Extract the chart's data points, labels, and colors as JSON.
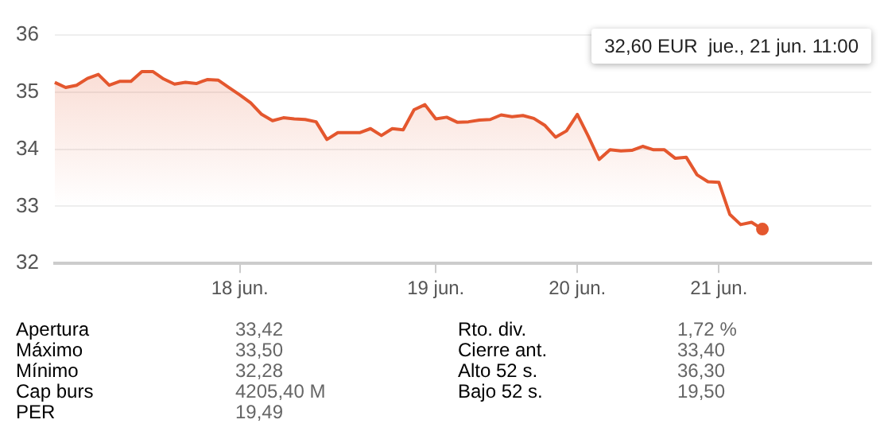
{
  "chart_data": {
    "type": "area",
    "categories": [
      null,
      null,
      null,
      null,
      null,
      null,
      null,
      null,
      null,
      null,
      null,
      null,
      null,
      null,
      null,
      null,
      null,
      "18 jun.",
      null,
      null,
      null,
      null,
      null,
      null,
      null,
      null,
      null,
      null,
      null,
      null,
      null,
      null,
      null,
      null,
      null,
      "19 jun.",
      null,
      null,
      null,
      null,
      null,
      null,
      null,
      null,
      null,
      null,
      null,
      null,
      "20 jun.",
      null,
      null,
      null,
      null,
      null,
      null,
      null,
      null,
      null,
      null,
      null,
      null,
      "21 jun.",
      null,
      null,
      null,
      null,
      null,
      null,
      null,
      null,
      null,
      null,
      null,
      null,
      null,
      null
    ],
    "series": [
      {
        "color": "#e4572e",
        "values": [
          35.17,
          35.08,
          35.12,
          35.24,
          35.31,
          35.12,
          35.19,
          35.19,
          35.36,
          35.36,
          35.23,
          35.14,
          35.17,
          35.15,
          35.22,
          35.21,
          35.08,
          34.95,
          34.81,
          34.61,
          34.5,
          34.55,
          34.53,
          34.52,
          34.48,
          34.17,
          34.29,
          34.29,
          34.29,
          34.36,
          34.24,
          34.36,
          34.34,
          34.69,
          34.78,
          34.53,
          34.56,
          34.47,
          34.48,
          34.51,
          34.52,
          34.6,
          34.57,
          34.59,
          34.54,
          34.42,
          34.21,
          34.32,
          34.61,
          34.23,
          33.82,
          33.99,
          33.97,
          33.98,
          34.05,
          33.99,
          33.99,
          33.84,
          33.86,
          33.55,
          33.43,
          33.42,
          32.86,
          32.68,
          32.72,
          32.6,
          null,
          null,
          null,
          null,
          null,
          null,
          null,
          null,
          null,
          null
        ]
      }
    ],
    "ylim": [
      32,
      36
    ],
    "yticks": [
      32,
      33,
      34,
      35,
      36
    ],
    "grid": "y",
    "legend": false,
    "annotations": [
      "32,60 EUR  jue., 21 jun. 11:00",
      "Apertura",
      "33,42",
      "Rto. div.",
      "1,72 %",
      "Máximo",
      "33,50",
      "Cierre ant.",
      "33,40",
      "Mínimo",
      "32,28",
      "Alto 52 s.",
      "36,30",
      "Cap burs",
      "4205,40 M",
      "Bajo 52 s.",
      "19,50",
      "PER",
      "19,49"
    ]
  }
}
